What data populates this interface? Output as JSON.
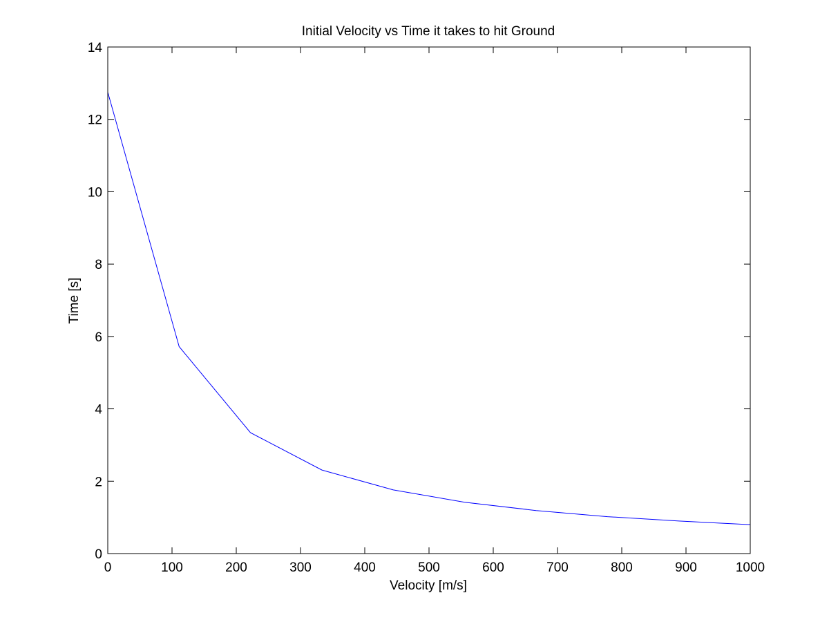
{
  "chart_data": {
    "type": "line",
    "title": "Initial Velocity vs Time it takes to hit Ground",
    "xlabel": "Velocity [m/s]",
    "ylabel": "Time [s]",
    "xlim": [
      0,
      1000
    ],
    "ylim": [
      0,
      14
    ],
    "xticks": [
      0,
      100,
      200,
      300,
      400,
      500,
      600,
      700,
      800,
      900,
      1000
    ],
    "yticks": [
      0,
      2,
      4,
      6,
      8,
      10,
      12,
      14
    ],
    "grid": false,
    "legend": "none",
    "series": [
      {
        "color": "#0000ff",
        "x": [
          0,
          111.1,
          222.2,
          333.3,
          444.4,
          555.6,
          666.7,
          777.8,
          888.9,
          1000
        ],
        "y": [
          12.75,
          5.72,
          3.34,
          2.31,
          1.76,
          1.42,
          1.19,
          1.02,
          0.9,
          0.8
        ]
      }
    ]
  }
}
